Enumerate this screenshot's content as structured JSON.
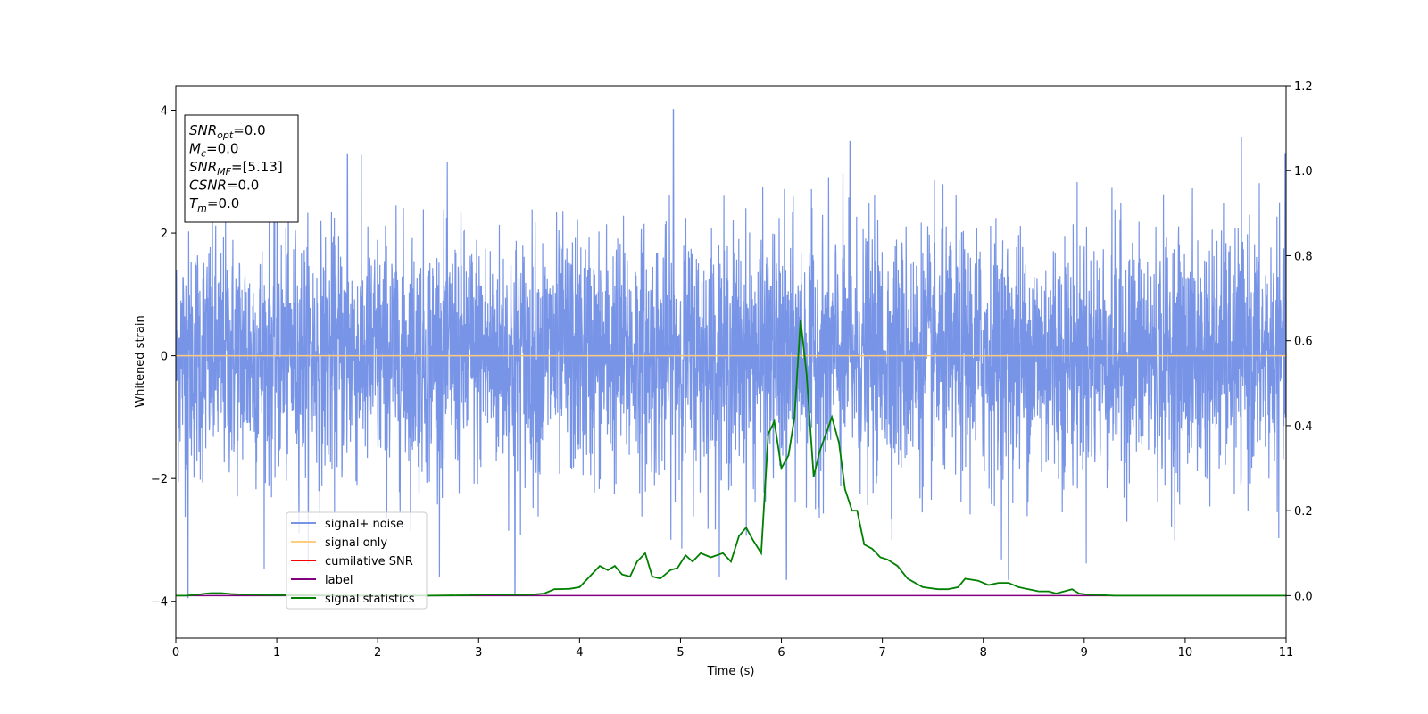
{
  "chart_data": {
    "type": "line",
    "xlabel": "Time (s)",
    "ylabel": "Whitened strain",
    "xlim": [
      0,
      11
    ],
    "ylim_left": [
      -4.6,
      4.4
    ],
    "ylim_right": [
      -0.1,
      1.2
    ],
    "x_ticks": [
      0,
      1,
      2,
      3,
      4,
      5,
      6,
      7,
      8,
      9,
      10,
      11
    ],
    "y_ticks_left": [
      -4,
      -2,
      0,
      2,
      4
    ],
    "y_ticks_right": [
      0.0,
      0.2,
      0.4,
      0.6,
      0.8,
      1.0,
      1.2
    ],
    "grid": false,
    "legend_placement": "lower-left",
    "legend": [
      {
        "label": "signal+ noise",
        "color": "#7894e6"
      },
      {
        "label": "signal only",
        "color": "#ffcc80"
      },
      {
        "label": "cumilative SNR",
        "color": "#ff0000"
      },
      {
        "label": "label",
        "color": "#800080"
      },
      {
        "label": "signal statistics",
        "color": "#008000"
      }
    ],
    "stats_box": [
      {
        "symbol": "SNR",
        "sub": "opt",
        "value": "=0.0"
      },
      {
        "symbol": "M",
        "sub": "c",
        "value": "=0.0"
      },
      {
        "symbol": "SNR",
        "sub": "MF",
        "value": "=[5.13]"
      },
      {
        "symbol": "CSNR",
        "sub": "",
        "value": "=0.0"
      },
      {
        "symbol": "T",
        "sub": "m",
        "value": "=0.0"
      }
    ],
    "series": [
      {
        "name": "signal+ noise",
        "axis": "left",
        "color": "#7894e6",
        "description": "whitened noise, approx. gaussian with std 1, sampled densely over 0-11 s; visible extrema ~ +4.0 at t=4.93 and -3.95 at t=0.12, -3.9 at t=3.36",
        "std": 1.0,
        "max": 4.02,
        "min": -3.95
      },
      {
        "name": "signal only",
        "axis": "left",
        "color": "#ffcc80",
        "x": [
          0,
          11
        ],
        "y": [
          0,
          0
        ]
      },
      {
        "name": "label",
        "axis": "right",
        "color": "#800080",
        "x": [
          0,
          11
        ],
        "y": [
          0,
          0
        ]
      },
      {
        "name": "signal statistics",
        "axis": "right",
        "color": "#008000",
        "x": [
          0.0,
          0.1,
          0.2,
          0.3,
          0.35,
          0.45,
          0.55,
          0.65,
          0.8,
          1.0,
          1.3,
          1.6,
          2.0,
          2.5,
          2.9,
          3.1,
          3.3,
          3.5,
          3.65,
          3.75,
          3.9,
          4.0,
          4.1,
          4.2,
          4.28,
          4.35,
          4.42,
          4.5,
          4.57,
          4.65,
          4.72,
          4.8,
          4.9,
          4.97,
          5.05,
          5.12,
          5.2,
          5.3,
          5.42,
          5.5,
          5.58,
          5.65,
          5.72,
          5.8,
          5.87,
          5.93,
          6.0,
          6.07,
          6.13,
          6.19,
          6.25,
          6.32,
          6.38,
          6.44,
          6.5,
          6.57,
          6.63,
          6.7,
          6.75,
          6.82,
          6.9,
          6.98,
          7.05,
          7.15,
          7.25,
          7.4,
          7.55,
          7.65,
          7.75,
          7.82,
          7.95,
          8.05,
          8.15,
          8.25,
          8.35,
          8.45,
          8.55,
          8.65,
          8.72,
          8.8,
          8.88,
          8.95,
          9.05,
          9.2,
          9.3,
          9.4,
          9.6,
          9.8,
          10.0,
          10.5,
          11.0
        ],
        "y": [
          0.0,
          0.0,
          0.002,
          0.005,
          0.006,
          0.006,
          0.004,
          0.003,
          0.002,
          0.001,
          0.001,
          0.0,
          0.0,
          0.0,
          0.001,
          0.003,
          0.002,
          0.002,
          0.005,
          0.015,
          0.016,
          0.02,
          0.045,
          0.07,
          0.06,
          0.07,
          0.05,
          0.045,
          0.08,
          0.1,
          0.045,
          0.04,
          0.06,
          0.065,
          0.095,
          0.08,
          0.1,
          0.09,
          0.1,
          0.08,
          0.14,
          0.16,
          0.13,
          0.1,
          0.38,
          0.41,
          0.3,
          0.33,
          0.42,
          0.65,
          0.52,
          0.28,
          0.34,
          0.38,
          0.42,
          0.36,
          0.25,
          0.2,
          0.2,
          0.12,
          0.11,
          0.09,
          0.085,
          0.07,
          0.04,
          0.02,
          0.015,
          0.015,
          0.02,
          0.04,
          0.035,
          0.025,
          0.03,
          0.03,
          0.02,
          0.015,
          0.01,
          0.01,
          0.005,
          0.01,
          0.015,
          0.005,
          0.002,
          0.001,
          0.0,
          0.0,
          0.0,
          0.0,
          0.0,
          0.0,
          0.0
        ]
      }
    ]
  }
}
